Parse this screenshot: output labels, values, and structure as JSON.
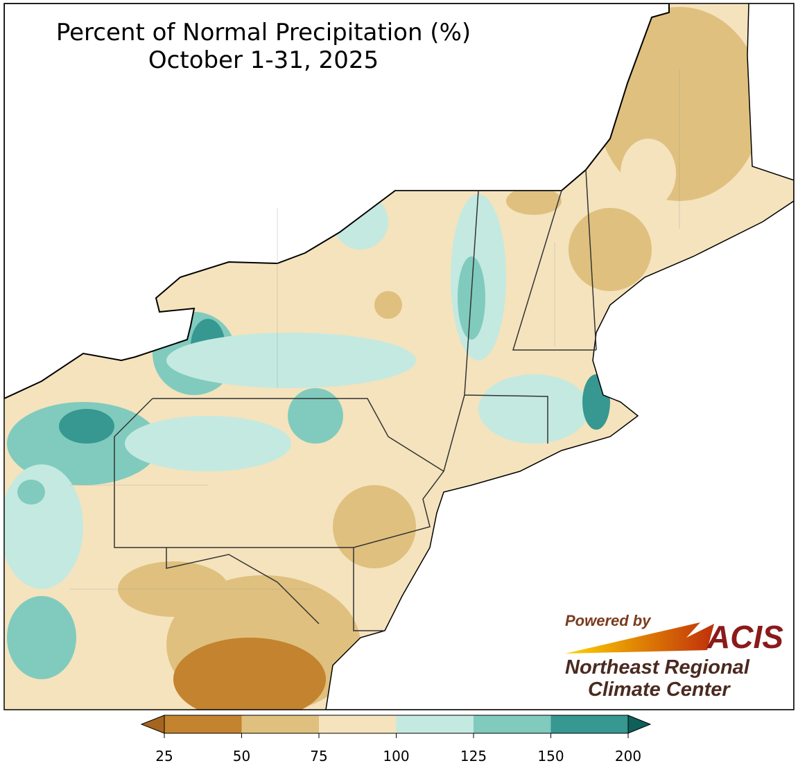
{
  "title": "Percent of Normal Precipitation (%)",
  "subtitle": "October 1-31, 2025",
  "legend": {
    "ticks": [
      25,
      50,
      75,
      100,
      125,
      150,
      200
    ],
    "colors": [
      "#c3832f",
      "#dfc07e",
      "#f4e3bd",
      "#c4e9e1",
      "#80cbbe",
      "#369890"
    ],
    "under_color": "#a5651f",
    "over_color": "#0f5f5a"
  },
  "logo": {
    "powered": "Powered by",
    "name": "ACIS",
    "line1": "Northeast Regional",
    "line2": "Climate Center"
  }
}
